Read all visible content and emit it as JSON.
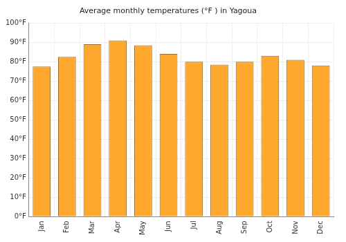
{
  "chart_data": {
    "type": "bar",
    "title": "Average monthly temperatures (°F ) in Yagoua",
    "categories": [
      "Jan",
      "Feb",
      "Mar",
      "Apr",
      "May",
      "Jun",
      "Jul",
      "Aug",
      "Sep",
      "Oct",
      "Nov",
      "Dec"
    ],
    "values": [
      77.5,
      82.5,
      89,
      91,
      88.5,
      84,
      80,
      78.5,
      80,
      83,
      81,
      78
    ],
    "color": "#ffa82e",
    "ylim": [
      0,
      100
    ],
    "yticks": [
      {
        "value": 0,
        "label": "0°F"
      },
      {
        "value": 10,
        "label": "10°F"
      },
      {
        "value": 20,
        "label": "20°F"
      },
      {
        "value": 30,
        "label": "30°F"
      },
      {
        "value": 40,
        "label": "40°F"
      },
      {
        "value": 50,
        "label": "50°F"
      },
      {
        "value": 60,
        "label": "60°F"
      },
      {
        "value": 70,
        "label": "70°F"
      },
      {
        "value": 80,
        "label": "80°F"
      },
      {
        "value": 90,
        "label": "90°F"
      },
      {
        "value": 100,
        "label": "100°F"
      }
    ],
    "grid": true
  }
}
